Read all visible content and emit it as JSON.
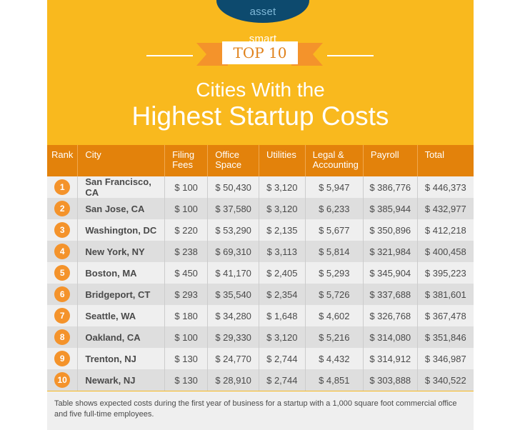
{
  "brand": {
    "logo_part1": "smart",
    "logo_part2": "asset"
  },
  "header": {
    "badge": "TOP 10",
    "title_line1": "Cities With the",
    "title_line2": "Highest Startup Costs"
  },
  "colors": {
    "background": "#f9b91e",
    "header_row": "#e3820b",
    "rank_badge": "#f4932b",
    "logo": "#0d4a6e"
  },
  "table": {
    "columns": [
      "Rank",
      "City",
      "Filing Fees",
      "Office Space",
      "Utilities",
      "Legal & Accounting",
      "Payroll",
      "Total"
    ],
    "rows": [
      {
        "rank": "1",
        "city": "San Francisco, CA",
        "filing": "$ 100",
        "office": "$ 50,430",
        "utilities": "$ 3,120",
        "legal": "$ 5,947",
        "payroll": "$ 386,776",
        "total": "$ 446,373"
      },
      {
        "rank": "2",
        "city": "San Jose, CA",
        "filing": "$ 100",
        "office": "$ 37,580",
        "utilities": "$ 3,120",
        "legal": "$ 6,233",
        "payroll": "$ 385,944",
        "total": "$ 432,977"
      },
      {
        "rank": "3",
        "city": "Washington, DC",
        "filing": "$ 220",
        "office": "$ 53,290",
        "utilities": "$ 2,135",
        "legal": "$ 5,677",
        "payroll": "$ 350,896",
        "total": "$ 412,218"
      },
      {
        "rank": "4",
        "city": "New York, NY",
        "filing": "$ 238",
        "office": "$ 69,310",
        "utilities": "$ 3,113",
        "legal": "$ 5,814",
        "payroll": "$ 321,984",
        "total": "$ 400,458"
      },
      {
        "rank": "5",
        "city": "Boston, MA",
        "filing": "$ 450",
        "office": "$ 41,170",
        "utilities": "$ 2,405",
        "legal": "$ 5,293",
        "payroll": "$ 345,904",
        "total": "$ 395,223"
      },
      {
        "rank": "6",
        "city": "Bridgeport, CT",
        "filing": "$ 293",
        "office": "$ 35,540",
        "utilities": "$ 2,354",
        "legal": "$ 5,726",
        "payroll": "$ 337,688",
        "total": "$ 381,601"
      },
      {
        "rank": "7",
        "city": "Seattle, WA",
        "filing": "$ 180",
        "office": "$ 34,280",
        "utilities": "$ 1,648",
        "legal": "$ 4,602",
        "payroll": "$ 326,768",
        "total": "$ 367,478"
      },
      {
        "rank": "8",
        "city": "Oakland, CA",
        "filing": "$ 100",
        "office": "$ 29,330",
        "utilities": "$ 3,120",
        "legal": "$ 5,216",
        "payroll": "$ 314,080",
        "total": "$ 351,846"
      },
      {
        "rank": "9",
        "city": "Trenton, NJ",
        "filing": "$ 130",
        "office": "$ 24,770",
        "utilities": "$ 2,744",
        "legal": "$ 4,432",
        "payroll": "$ 314,912",
        "total": "$ 346,987"
      },
      {
        "rank": "10",
        "city": "Newark, NJ",
        "filing": "$ 130",
        "office": "$ 28,910",
        "utilities": "$ 2,744",
        "legal": "$ 4,851",
        "payroll": "$ 303,888",
        "total": "$ 340,522"
      }
    ]
  },
  "footnote": "Table shows expected costs during the first year of business for a startup with a 1,000 square foot commercial office and five full-time employees.",
  "chart_data": {
    "type": "table",
    "title": "Top 10 Cities With the Highest Startup Costs",
    "columns": [
      "Rank",
      "City",
      "Filing Fees",
      "Office Space",
      "Utilities",
      "Legal & Accounting",
      "Payroll",
      "Total"
    ],
    "categories": [
      "San Francisco, CA",
      "San Jose, CA",
      "Washington, DC",
      "New York, NY",
      "Boston, MA",
      "Bridgeport, CT",
      "Seattle, WA",
      "Oakland, CA",
      "Trenton, NJ",
      "Newark, NJ"
    ],
    "series": [
      {
        "name": "Filing Fees",
        "values": [
          100,
          100,
          220,
          238,
          450,
          293,
          180,
          100,
          130,
          130
        ]
      },
      {
        "name": "Office Space",
        "values": [
          50430,
          37580,
          53290,
          69310,
          41170,
          35540,
          34280,
          29330,
          24770,
          28910
        ]
      },
      {
        "name": "Utilities",
        "values": [
          3120,
          3120,
          2135,
          3113,
          2405,
          2354,
          1648,
          3120,
          2744,
          2744
        ]
      },
      {
        "name": "Legal & Accounting",
        "values": [
          5947,
          6233,
          5677,
          5814,
          5293,
          5726,
          4602,
          5216,
          4432,
          4851
        ]
      },
      {
        "name": "Payroll",
        "values": [
          386776,
          385944,
          350896,
          321984,
          345904,
          337688,
          326768,
          314080,
          314912,
          303888
        ]
      },
      {
        "name": "Total",
        "values": [
          446373,
          432977,
          412218,
          400458,
          395223,
          381601,
          367478,
          351846,
          346987,
          340522
        ]
      }
    ],
    "note": "Table shows expected costs during the first year of business for a startup with a 1,000 square foot commercial office and five full-time employees."
  }
}
